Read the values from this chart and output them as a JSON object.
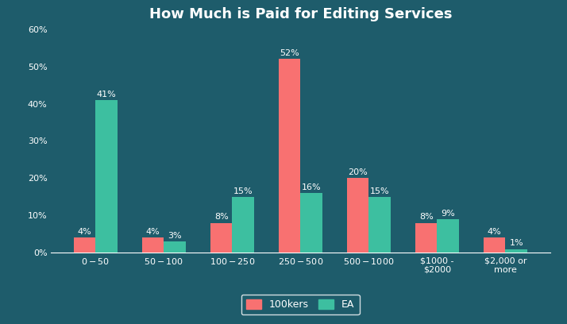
{
  "title": "How Much is Paid for Editing Services",
  "categories": [
    "$0 - $50",
    "$50 - $100",
    "$100 - $250",
    "$250 - $500",
    "$500 - $1000",
    "$1000 -\n$2000",
    "$2,000 or\nmore"
  ],
  "series1_label": "100kers",
  "series2_label": "EA",
  "series1_values": [
    4,
    4,
    8,
    52,
    20,
    8,
    4
  ],
  "series2_values": [
    41,
    3,
    15,
    16,
    15,
    9,
    1
  ],
  "series1_color": "#F87171",
  "series2_color": "#3DBFA0",
  "background_color": "#1E5C6B",
  "text_color": "#FFFFFF",
  "ylim": [
    0,
    60
  ],
  "yticks": [
    0,
    10,
    20,
    30,
    40,
    50,
    60
  ],
  "ytick_labels": [
    "0%",
    "10%",
    "20%",
    "30%",
    "40%",
    "50%",
    "60%"
  ],
  "bar_width": 0.32,
  "title_fontsize": 13,
  "label_fontsize": 8,
  "tick_fontsize": 8,
  "legend_fontsize": 9
}
